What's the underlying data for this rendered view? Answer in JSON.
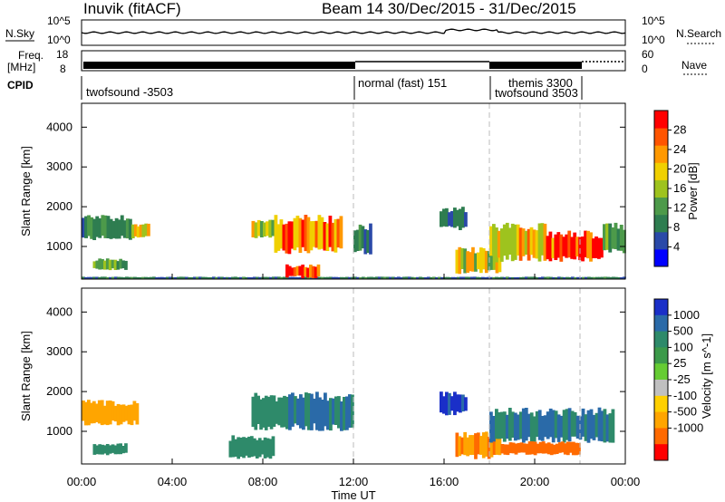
{
  "header": {
    "station": "Inuvik (fitACF)",
    "beam_date": "Beam 14  30/Dec/2015 - 31/Dec/2015"
  },
  "top_panels": {
    "nsky_label": "N.Sky",
    "nsky_ticks": [
      "10^5",
      "10^0"
    ],
    "nsearch_label": "N.Search",
    "nsearch_ticks": [
      "10^5",
      "10^0"
    ],
    "freq_label_line1": "Freq.",
    "freq_label_line2": "[MHz]",
    "freq_ticks": [
      "18",
      "8"
    ],
    "nave_label": "Nave",
    "nave_ticks": [
      "60",
      "0"
    ],
    "cpid_label": "CPID",
    "cpid_modes": [
      {
        "name": "twofsound -3503"
      },
      {
        "name": "normal (fast) 151"
      },
      {
        "name": "themis 3300"
      },
      {
        "name": "twofsound 3503"
      }
    ]
  },
  "chart_data": [
    {
      "type": "heatmap",
      "panel": "power",
      "ylabel": "Slant Range [km]",
      "xlabel": "",
      "x_range": [
        "00:00",
        "00:00"
      ],
      "ylim": [
        180,
        4600
      ],
      "yticks": [
        1000,
        2000,
        3000,
        4000
      ],
      "xticks": [
        "00:00",
        "04:00",
        "08:00",
        "12:00",
        "16:00",
        "20:00",
        "00:00"
      ],
      "mode_change_hours": [
        12.0,
        18.0,
        22.0
      ],
      "colorbar": {
        "label": "Power [dB]",
        "ticks": [
          "4",
          "8",
          "12",
          "16",
          "20",
          "24",
          "28"
        ],
        "colors": [
          "#0000ff",
          "#2a49a8",
          "#2e7d50",
          "#4d9a4a",
          "#9ec31e",
          "#f0d000",
          "#ff9900",
          "#ff5500",
          "#ff0000"
        ]
      },
      "regions": [
        {
          "h0": 0.0,
          "h1": 2.2,
          "r0": 1150,
          "r1": 1800,
          "value": 10
        },
        {
          "h0": 2.2,
          "h1": 3.0,
          "r0": 1200,
          "r1": 1600,
          "value": 20
        },
        {
          "h0": 0.5,
          "h1": 2.0,
          "r0": 400,
          "r1": 700,
          "value": 12
        },
        {
          "h0": 0.0,
          "h1": 24.0,
          "r0": 180,
          "r1": 240,
          "value": 8
        },
        {
          "h0": 7.5,
          "h1": 8.5,
          "r0": 1200,
          "r1": 1700,
          "value": 18
        },
        {
          "h0": 8.5,
          "h1": 11.5,
          "r0": 800,
          "r1": 1800,
          "value": 24
        },
        {
          "h0": 9.0,
          "h1": 10.5,
          "r0": 200,
          "r1": 550,
          "value": 29
        },
        {
          "h0": 12.0,
          "h1": 12.8,
          "r0": 800,
          "r1": 1600,
          "value": 8
        },
        {
          "h0": 15.8,
          "h1": 17.0,
          "r0": 1400,
          "r1": 2000,
          "value": 8
        },
        {
          "h0": 16.5,
          "h1": 18.5,
          "r0": 300,
          "r1": 1000,
          "value": 18
        },
        {
          "h0": 18.0,
          "h1": 20.5,
          "r0": 600,
          "r1": 1600,
          "value": 20
        },
        {
          "h0": 20.5,
          "h1": 23.0,
          "r0": 600,
          "r1": 1400,
          "value": 28
        },
        {
          "h0": 23.0,
          "h1": 24.0,
          "r0": 800,
          "r1": 1600,
          "value": 14
        }
      ]
    },
    {
      "type": "heatmap",
      "panel": "velocity",
      "ylabel": "Slant Range [km]",
      "xlabel": "Time UT",
      "x_range": [
        "00:00",
        "00:00"
      ],
      "ylim": [
        180,
        4600
      ],
      "yticks": [
        1000,
        2000,
        3000,
        4000
      ],
      "xticks": [
        "00:00",
        "04:00",
        "08:00",
        "12:00",
        "16:00",
        "20:00",
        "00:00"
      ],
      "mode_change_hours": [
        12.0,
        18.0,
        22.0
      ],
      "colorbar": {
        "label": "Velocity [m s^-1]",
        "ticks": [
          "1000",
          "500",
          "100",
          "25",
          "-25",
          "-100",
          "-500",
          "-1000"
        ],
        "colors": [
          "#1a2fc8",
          "#2a6aa8",
          "#2e8a6a",
          "#3c9a4a",
          "#66cc33",
          "#c0c0c0",
          "#ffd000",
          "#ffa500",
          "#ff6a00",
          "#ff0000"
        ]
      },
      "regions": [
        {
          "h0": 0.0,
          "h1": 2.5,
          "r0": 1150,
          "r1": 1800,
          "value": -200
        },
        {
          "h0": 0.5,
          "h1": 2.0,
          "r0": 400,
          "r1": 700,
          "value": 100
        },
        {
          "h0": 6.5,
          "h1": 8.5,
          "r0": 300,
          "r1": 900,
          "value": 100
        },
        {
          "h0": 7.5,
          "h1": 9.0,
          "r0": 1000,
          "r1": 2000,
          "value": 200
        },
        {
          "h0": 9.0,
          "h1": 12.0,
          "r0": 1000,
          "r1": 2000,
          "value": 300
        },
        {
          "h0": 15.8,
          "h1": 17.0,
          "r0": 1400,
          "r1": 2000,
          "value": 800
        },
        {
          "h0": 16.5,
          "h1": 18.5,
          "r0": 300,
          "r1": 1000,
          "value": -300
        },
        {
          "h0": 18.0,
          "h1": 23.5,
          "r0": 700,
          "r1": 1600,
          "value": 300
        },
        {
          "h0": 18.5,
          "h1": 22.0,
          "r0": 400,
          "r1": 750,
          "value": -400
        }
      ]
    }
  ]
}
